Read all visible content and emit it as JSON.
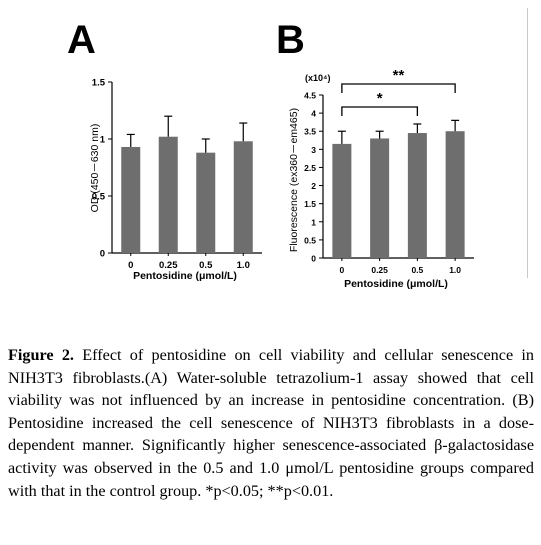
{
  "panels": {
    "a": {
      "letter": "A"
    },
    "b": {
      "letter": "B"
    }
  },
  "chart_data": [
    {
      "type": "bar",
      "panel": "A",
      "categories": [
        "0",
        "0.25",
        "0.5",
        "1.0"
      ],
      "values": [
        0.93,
        1.02,
        0.88,
        0.98
      ],
      "errors": [
        0.11,
        0.18,
        0.12,
        0.16
      ],
      "xlabel": "Pentosidine (μmol/L)",
      "ylabel": "OD (450－630 nm)",
      "ylim": [
        0,
        1.5
      ],
      "yticks": [
        "0",
        "0.5",
        "1",
        "1.5"
      ],
      "bar_color": "#6e6e6e",
      "grid": false
    },
    {
      "type": "bar",
      "panel": "B",
      "categories": [
        "0",
        "0.25",
        "0.5",
        "1.0"
      ],
      "values": [
        3.15,
        3.3,
        3.45,
        3.5
      ],
      "errors": [
        0.35,
        0.2,
        0.25,
        0.3
      ],
      "xlabel": "Pentosidine (μmol/L)",
      "ylabel": "Fluorescence (ex360－em465)",
      "scale_label": "(x10⁴)",
      "ylim": [
        0,
        4.5
      ],
      "yticks": [
        "0",
        "0.5",
        "1",
        "1.5",
        "2",
        "2.5",
        "3",
        "3.5",
        "4",
        "4.5"
      ],
      "bar_color": "#6e6e6e",
      "grid": false,
      "significance": [
        {
          "from": "0",
          "to": "0.5",
          "label": "*"
        },
        {
          "from": "0",
          "to": "1.0",
          "label": "**"
        }
      ]
    }
  ],
  "caption": {
    "label": "Figure 2.",
    "text": " Effect of pentosidine on cell viability and cellular senescence in NIH3T3 fibroblasts.(A) Water-soluble tetrazolium-1 assay showed that cell viability was not influenced by an increase in pentosidine concentration. (B) Pentosidine increased the cell senescence of NIH3T3 fibroblasts in a dose-dependent manner. Significantly higher senescence-associated β-galactosidase activity was observed in the 0.5 and 1.0 μmol/L pentosidine groups compared with that in the control group. *p<0.05; **p<0.01."
  }
}
